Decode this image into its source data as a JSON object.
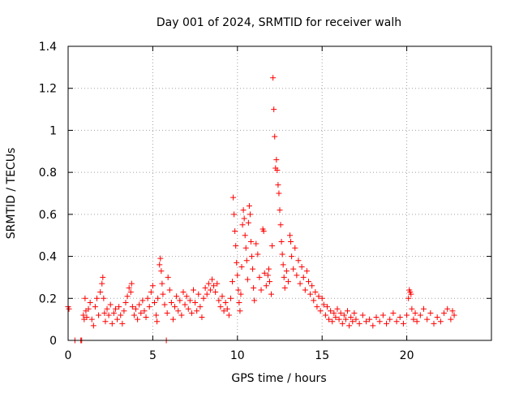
{
  "chart_data": {
    "type": "scatter",
    "title": "Day 001 of 2024, SRMTID for receiver walh",
    "xlabel": "GPS time / hours",
    "ylabel": "SRMTID / TECUs",
    "xlim": [
      0,
      25
    ],
    "ylim": [
      0,
      1.4
    ],
    "grid": true,
    "marker": "plus",
    "series_color": "#ff0000",
    "x_ticks": [
      {
        "value": 0,
        "label": "0"
      },
      {
        "value": 5,
        "label": "5"
      },
      {
        "value": 10,
        "label": "10"
      },
      {
        "value": 15,
        "label": "15"
      },
      {
        "value": 20,
        "label": "20"
      }
    ],
    "y_ticks": [
      {
        "value": 0,
        "label": "0"
      },
      {
        "value": 0.2,
        "label": "0.2"
      },
      {
        "value": 0.4,
        "label": "0.4"
      },
      {
        "value": 0.6,
        "label": "0.6"
      },
      {
        "value": 0.8,
        "label": "0.8"
      },
      {
        "value": 1.0,
        "label": "1"
      },
      {
        "value": 1.2,
        "label": "1.2"
      },
      {
        "value": 1.4,
        "label": "1.4"
      }
    ],
    "series": [
      {
        "name": "SRMTID",
        "points": [
          [
            0.0,
            0.16
          ],
          [
            0.05,
            0.15
          ],
          [
            0.4,
            0.0
          ],
          [
            0.75,
            0.0
          ],
          [
            0.8,
            0.0
          ],
          [
            0.9,
            0.12
          ],
          [
            0.95,
            0.1
          ],
          [
            1.0,
            0.2
          ],
          [
            1.05,
            0.14
          ],
          [
            1.1,
            0.11
          ],
          [
            1.2,
            0.15
          ],
          [
            1.3,
            0.18
          ],
          [
            1.4,
            0.1
          ],
          [
            1.5,
            0.07
          ],
          [
            1.6,
            0.16
          ],
          [
            1.7,
            0.2
          ],
          [
            1.8,
            0.12
          ],
          [
            1.9,
            0.23
          ],
          [
            2.0,
            0.27
          ],
          [
            2.05,
            0.3
          ],
          [
            2.1,
            0.2
          ],
          [
            2.15,
            0.13
          ],
          [
            2.2,
            0.09
          ],
          [
            2.3,
            0.15
          ],
          [
            2.4,
            0.12
          ],
          [
            2.5,
            0.17
          ],
          [
            2.6,
            0.08
          ],
          [
            2.7,
            0.13
          ],
          [
            2.8,
            0.15
          ],
          [
            2.9,
            0.1
          ],
          [
            3.0,
            0.16
          ],
          [
            3.1,
            0.12
          ],
          [
            3.2,
            0.08
          ],
          [
            3.3,
            0.14
          ],
          [
            3.4,
            0.18
          ],
          [
            3.5,
            0.21
          ],
          [
            3.6,
            0.25
          ],
          [
            3.7,
            0.23
          ],
          [
            3.75,
            0.27
          ],
          [
            3.8,
            0.16
          ],
          [
            3.9,
            0.12
          ],
          [
            4.0,
            0.15
          ],
          [
            4.1,
            0.1
          ],
          [
            4.2,
            0.17
          ],
          [
            4.3,
            0.13
          ],
          [
            4.4,
            0.19
          ],
          [
            4.5,
            0.14
          ],
          [
            4.6,
            0.11
          ],
          [
            4.7,
            0.2
          ],
          [
            4.8,
            0.16
          ],
          [
            4.9,
            0.23
          ],
          [
            5.0,
            0.26
          ],
          [
            5.1,
            0.18
          ],
          [
            5.2,
            0.12
          ],
          [
            5.25,
            0.09
          ],
          [
            5.3,
            0.2
          ],
          [
            5.4,
            0.36
          ],
          [
            5.45,
            0.39
          ],
          [
            5.5,
            0.33
          ],
          [
            5.55,
            0.27
          ],
          [
            5.6,
            0.22
          ],
          [
            5.7,
            0.17
          ],
          [
            5.8,
            0.0
          ],
          [
            5.85,
            0.13
          ],
          [
            5.9,
            0.3
          ],
          [
            6.0,
            0.24
          ],
          [
            6.1,
            0.18
          ],
          [
            6.2,
            0.1
          ],
          [
            6.3,
            0.16
          ],
          [
            6.4,
            0.21
          ],
          [
            6.5,
            0.14
          ],
          [
            6.6,
            0.19
          ],
          [
            6.7,
            0.12
          ],
          [
            6.8,
            0.23
          ],
          [
            6.9,
            0.17
          ],
          [
            7.0,
            0.21
          ],
          [
            7.1,
            0.15
          ],
          [
            7.2,
            0.19
          ],
          [
            7.3,
            0.13
          ],
          [
            7.4,
            0.24
          ],
          [
            7.5,
            0.18
          ],
          [
            7.6,
            0.14
          ],
          [
            7.7,
            0.22
          ],
          [
            7.8,
            0.16
          ],
          [
            7.9,
            0.11
          ],
          [
            8.0,
            0.2
          ],
          [
            8.1,
            0.25
          ],
          [
            8.2,
            0.22
          ],
          [
            8.3,
            0.27
          ],
          [
            8.4,
            0.24
          ],
          [
            8.5,
            0.29
          ],
          [
            8.6,
            0.26
          ],
          [
            8.7,
            0.23
          ],
          [
            8.8,
            0.27
          ],
          [
            8.9,
            0.19
          ],
          [
            9.0,
            0.16
          ],
          [
            9.1,
            0.21
          ],
          [
            9.2,
            0.14
          ],
          [
            9.3,
            0.18
          ],
          [
            9.4,
            0.15
          ],
          [
            9.5,
            0.12
          ],
          [
            9.6,
            0.2
          ],
          [
            9.7,
            0.28
          ],
          [
            9.75,
            0.68
          ],
          [
            9.8,
            0.6
          ],
          [
            9.85,
            0.52
          ],
          [
            9.9,
            0.45
          ],
          [
            9.95,
            0.37
          ],
          [
            10.0,
            0.31
          ],
          [
            10.05,
            0.24
          ],
          [
            10.1,
            0.18
          ],
          [
            10.15,
            0.14
          ],
          [
            10.2,
            0.22
          ],
          [
            10.25,
            0.35
          ],
          [
            10.3,
            0.55
          ],
          [
            10.35,
            0.62
          ],
          [
            10.4,
            0.58
          ],
          [
            10.45,
            0.5
          ],
          [
            10.5,
            0.44
          ],
          [
            10.55,
            0.38
          ],
          [
            10.6,
            0.29
          ],
          [
            10.65,
            0.56
          ],
          [
            10.7,
            0.64
          ],
          [
            10.75,
            0.6
          ],
          [
            10.8,
            0.47
          ],
          [
            10.85,
            0.4
          ],
          [
            10.9,
            0.34
          ],
          [
            10.95,
            0.25
          ],
          [
            11.0,
            0.19
          ],
          [
            11.1,
            0.46
          ],
          [
            11.2,
            0.41
          ],
          [
            11.3,
            0.3
          ],
          [
            11.4,
            0.24
          ],
          [
            11.5,
            0.53
          ],
          [
            11.55,
            0.52
          ],
          [
            11.6,
            0.32
          ],
          [
            11.7,
            0.26
          ],
          [
            11.8,
            0.31
          ],
          [
            11.85,
            0.34
          ],
          [
            11.9,
            0.28
          ],
          [
            12.0,
            0.22
          ],
          [
            12.05,
            0.45
          ],
          [
            12.1,
            1.25
          ],
          [
            12.15,
            1.1
          ],
          [
            12.2,
            0.97
          ],
          [
            12.25,
            0.82
          ],
          [
            12.3,
            0.86
          ],
          [
            12.35,
            0.81
          ],
          [
            12.4,
            0.74
          ],
          [
            12.45,
            0.7
          ],
          [
            12.5,
            0.62
          ],
          [
            12.55,
            0.55
          ],
          [
            12.6,
            0.47
          ],
          [
            12.65,
            0.41
          ],
          [
            12.7,
            0.36
          ],
          [
            12.75,
            0.3
          ],
          [
            12.8,
            0.25
          ],
          [
            12.9,
            0.33
          ],
          [
            13.0,
            0.28
          ],
          [
            13.1,
            0.5
          ],
          [
            13.15,
            0.47
          ],
          [
            13.2,
            0.4
          ],
          [
            13.3,
            0.34
          ],
          [
            13.4,
            0.44
          ],
          [
            13.5,
            0.31
          ],
          [
            13.6,
            0.38
          ],
          [
            13.7,
            0.27
          ],
          [
            13.8,
            0.35
          ],
          [
            13.9,
            0.3
          ],
          [
            14.0,
            0.24
          ],
          [
            14.1,
            0.33
          ],
          [
            14.2,
            0.28
          ],
          [
            14.3,
            0.22
          ],
          [
            14.4,
            0.26
          ],
          [
            14.5,
            0.19
          ],
          [
            14.6,
            0.23
          ],
          [
            14.7,
            0.16
          ],
          [
            14.8,
            0.21
          ],
          [
            14.9,
            0.14
          ],
          [
            15.0,
            0.2
          ],
          [
            15.1,
            0.17
          ],
          [
            15.2,
            0.12
          ],
          [
            15.3,
            0.16
          ],
          [
            15.4,
            0.1
          ],
          [
            15.5,
            0.14
          ],
          [
            15.6,
            0.09
          ],
          [
            15.7,
            0.13
          ],
          [
            15.8,
            0.11
          ],
          [
            15.9,
            0.15
          ],
          [
            16.0,
            0.1
          ],
          [
            16.1,
            0.13
          ],
          [
            16.2,
            0.08
          ],
          [
            16.3,
            0.12
          ],
          [
            16.4,
            0.1
          ],
          [
            16.5,
            0.14
          ],
          [
            16.6,
            0.07
          ],
          [
            16.7,
            0.11
          ],
          [
            16.8,
            0.09
          ],
          [
            16.9,
            0.13
          ],
          [
            17.0,
            0.1
          ],
          [
            17.2,
            0.08
          ],
          [
            17.4,
            0.12
          ],
          [
            17.6,
            0.09
          ],
          [
            17.8,
            0.1
          ],
          [
            18.0,
            0.07
          ],
          [
            18.2,
            0.11
          ],
          [
            18.4,
            0.09
          ],
          [
            18.6,
            0.12
          ],
          [
            18.8,
            0.08
          ],
          [
            19.0,
            0.1
          ],
          [
            19.2,
            0.13
          ],
          [
            19.4,
            0.09
          ],
          [
            19.6,
            0.11
          ],
          [
            19.8,
            0.08
          ],
          [
            20.0,
            0.12
          ],
          [
            20.1,
            0.2
          ],
          [
            20.15,
            0.24
          ],
          [
            20.2,
            0.23
          ],
          [
            20.25,
            0.22
          ],
          [
            20.3,
            0.15
          ],
          [
            20.4,
            0.1
          ],
          [
            20.5,
            0.13
          ],
          [
            20.6,
            0.09
          ],
          [
            20.8,
            0.12
          ],
          [
            21.0,
            0.15
          ],
          [
            21.2,
            0.1
          ],
          [
            21.4,
            0.13
          ],
          [
            21.6,
            0.08
          ],
          [
            21.8,
            0.11
          ],
          [
            22.0,
            0.09
          ],
          [
            22.2,
            0.13
          ],
          [
            22.4,
            0.15
          ],
          [
            22.6,
            0.1
          ],
          [
            22.7,
            0.14
          ],
          [
            22.8,
            0.12
          ]
        ]
      }
    ]
  }
}
